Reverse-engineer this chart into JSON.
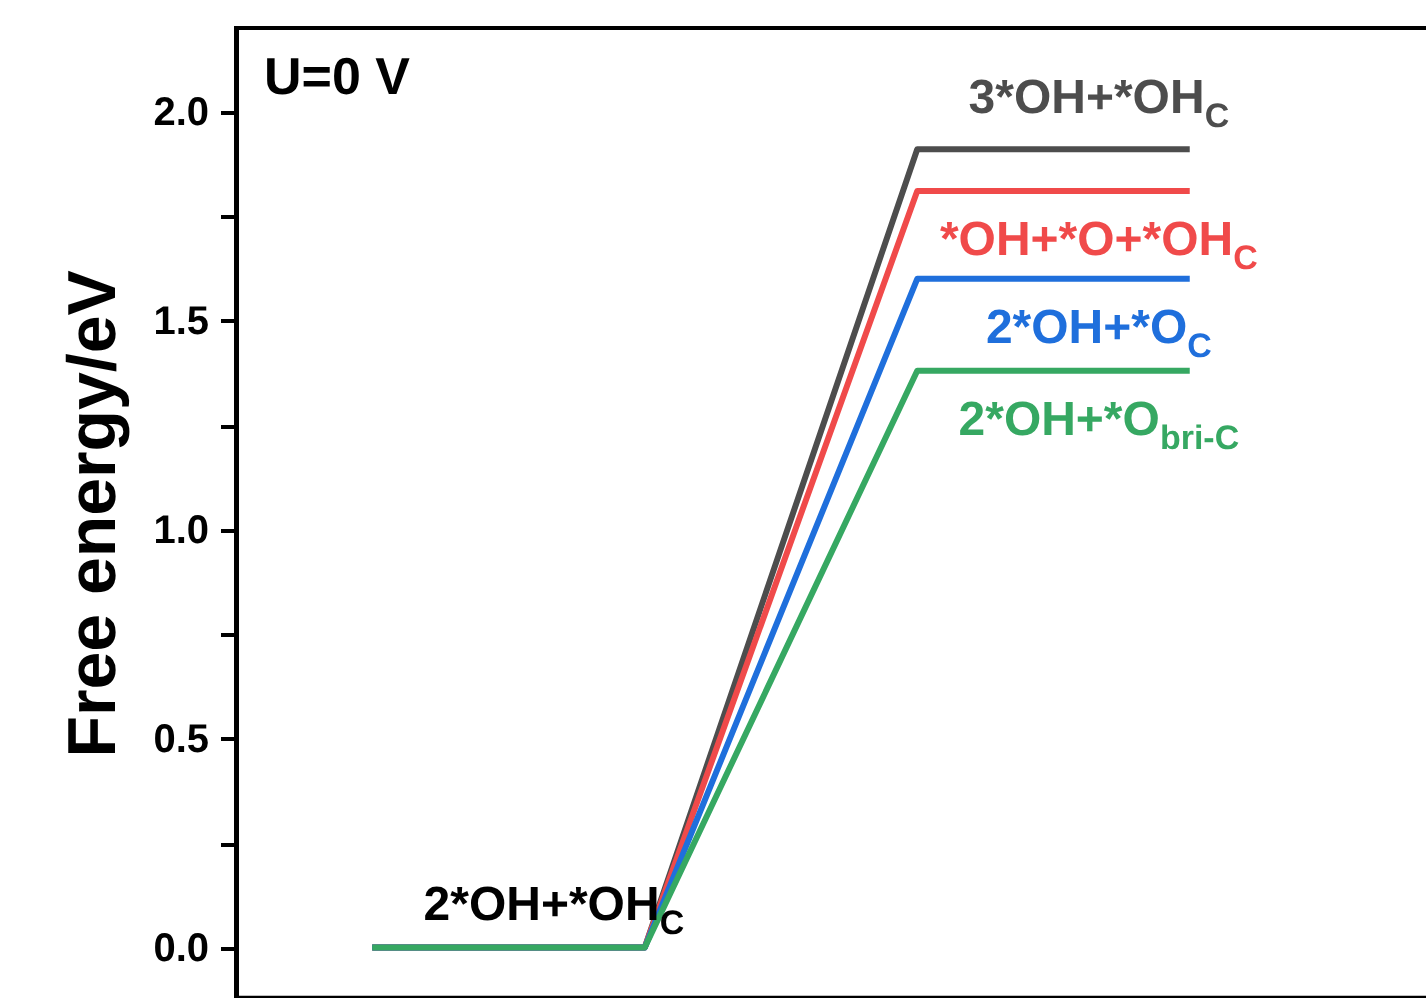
{
  "chart_data": {
    "type": "line",
    "title": "U=0 V",
    "ylabel": "Free energy/eV",
    "categories": [
      null,
      null,
      null,
      null
    ],
    "series": [
      {
        "name": "3*OH+*OH$_{C}$",
        "color": "#4d4d4d",
        "values": [
          0,
          0,
          1.91,
          1.91
        ]
      },
      {
        "name": "*OH+*O+*OH$_{C}$",
        "color": "#f04a4a",
        "values": [
          0,
          0,
          1.81,
          1.81
        ]
      },
      {
        "name": "2*OH+*O$_{C}$",
        "color": "#1f6fdc",
        "values": [
          0,
          0,
          1.6,
          1.6
        ]
      },
      {
        "name": "2*OH+*O$_{bri-C}$",
        "color": "#36a862",
        "values": [
          0,
          0,
          1.38,
          1.38
        ]
      }
    ],
    "annotations": [
      {
        "text": "2*OH+*OH$_{C}$",
        "y": 0
      }
    ],
    "ylim": [
      -0.12,
      2.2
    ],
    "yticks": [
      {
        "value": 0,
        "label": "0.0"
      },
      {
        "value": 0.25,
        "label": null
      },
      {
        "value": 0.5,
        "label": "0.5"
      },
      {
        "value": 0.75,
        "label": null
      },
      {
        "value": 1,
        "label": "1.0"
      },
      {
        "value": 1.25,
        "label": null
      },
      {
        "value": 1.5,
        "label": "1.5"
      },
      {
        "value": 1.75,
        "label": null
      },
      {
        "value": 2,
        "label": "2.0"
      }
    ],
    "tick_labels": "y",
    "legend": false
  }
}
